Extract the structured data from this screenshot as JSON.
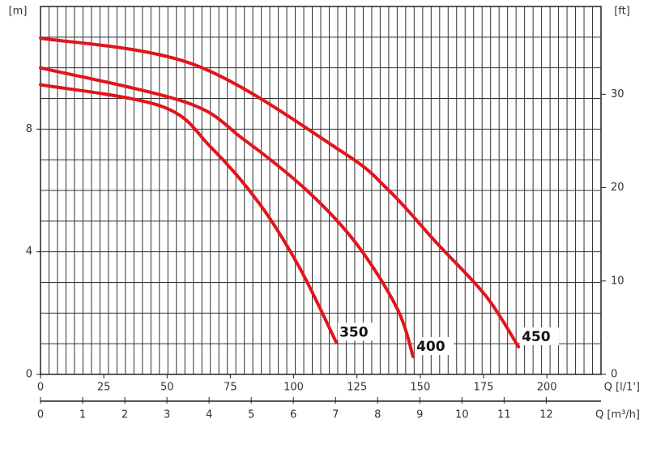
{
  "chart_data": {
    "type": "line",
    "y_label": "[m]",
    "y2_label": "[ft]",
    "x_label": "Q [l/1']",
    "x2_label": "Q [m³/h]",
    "xlim": [
      0,
      221.4
    ],
    "xticks": [
      0,
      25,
      50,
      75,
      100,
      125,
      150,
      175,
      200
    ],
    "x2lim": [
      0,
      13.3
    ],
    "x2ticks": [
      0,
      1,
      2,
      3,
      4,
      5,
      6,
      7,
      8,
      9,
      10,
      11,
      12
    ],
    "ylim": [
      0,
      12
    ],
    "yticks": [
      0,
      4,
      8
    ],
    "y2lim": [
      0,
      39.4
    ],
    "y2ticks": [
      0,
      10,
      20,
      30
    ],
    "grid": true,
    "series": [
      {
        "name": "350",
        "color": "#e3141b",
        "x": [
          0,
          48,
          67.2,
          86.4,
          102.4,
          116.8
        ],
        "values": [
          9.45,
          8.74,
          7.42,
          5.58,
          3.47,
          1.05
        ]
      },
      {
        "name": "400",
        "color": "#e3141b",
        "x": [
          0,
          57.6,
          80,
          105.6,
          124.8,
          140.8,
          147.2
        ],
        "values": [
          10.0,
          8.87,
          7.68,
          5.97,
          4.26,
          2.16,
          0.58
        ]
      },
      {
        "name": "450",
        "color": "#e3141b",
        "x": [
          0,
          60.8,
          118.4,
          137.6,
          156.8,
          176,
          188.8
        ],
        "values": [
          10.97,
          10.1,
          7.3,
          6.0,
          4.26,
          2.55,
          0.9
        ]
      }
    ]
  }
}
